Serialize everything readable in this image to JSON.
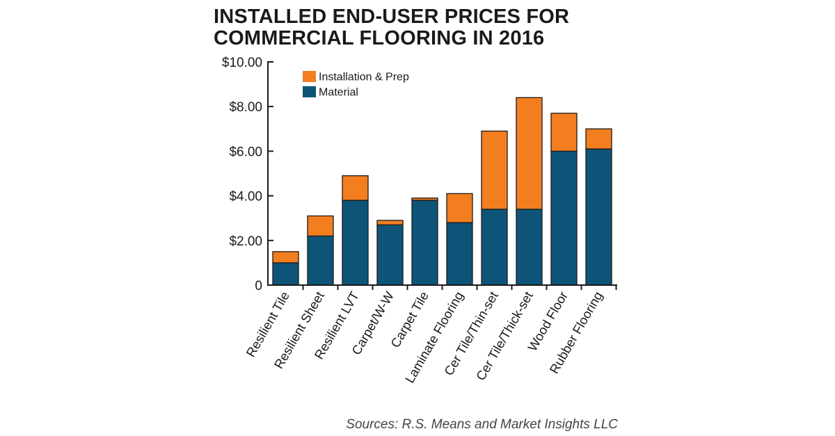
{
  "chart_data": {
    "type": "bar",
    "stacked": true,
    "title": "INSTALLED END-USER PRICES FOR COMMERCIAL FLOORING IN 2016",
    "title_lines": [
      "INSTALLED END-USER PRICES FOR",
      "COMMERCIAL FLOORING IN 2016"
    ],
    "xlabel": "",
    "ylabel": "",
    "ylim": [
      0,
      10
    ],
    "yticks": [
      0,
      2,
      4,
      6,
      8,
      10
    ],
    "ytick_labels": [
      "0",
      "$2.00",
      "$4.00",
      "$6.00",
      "$8.00",
      "$10.00"
    ],
    "categories": [
      "Resilient Tile",
      "Resilient Sheet",
      "Resilient LVT",
      "Carpet/W-W",
      "Carpet Tile",
      "Laminate Flooring",
      "Cer Tile/Thin-set",
      "Cer Tile/Thick-set",
      "Wood Floor",
      "Rubber Flooring"
    ],
    "series": [
      {
        "name": "Material",
        "color": "#0e5478",
        "values": [
          1.0,
          2.2,
          3.8,
          2.7,
          3.8,
          2.8,
          3.4,
          3.4,
          6.0,
          6.1
        ]
      },
      {
        "name": "Installation & Prep",
        "color": "#f37e20",
        "values": [
          0.5,
          0.9,
          1.1,
          0.2,
          0.1,
          1.3,
          3.5,
          5.0,
          1.7,
          0.9
        ]
      }
    ],
    "legend_order": [
      "Installation & Prep",
      "Material"
    ],
    "legend_position": "top-left",
    "grid": false,
    "source": "Sources: R.S. Means and Market Insights LLC"
  }
}
